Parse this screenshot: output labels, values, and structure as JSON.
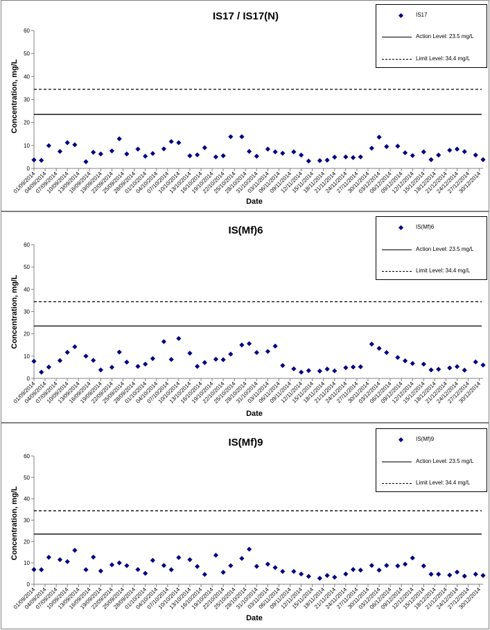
{
  "chart_data": [
    {
      "type": "scatter",
      "title": "IS17 / IS17(N)",
      "xlabel": "Date",
      "ylabel": "Concentration, mg/L",
      "ylim": [
        0,
        60
      ],
      "yticks": [
        "0",
        "10",
        "20",
        "30",
        "40",
        "50",
        "60"
      ],
      "xticks": [
        "01/09/2014",
        "04/09/2014",
        "07/09/2014",
        "10/09/2014",
        "13/09/2014",
        "16/09/2014",
        "19/09/2014",
        "22/09/2014",
        "25/09/2014",
        "28/09/2014",
        "01/10/2014",
        "04/10/2014",
        "07/10/2014",
        "10/10/2014",
        "13/10/2014",
        "16/10/2014",
        "19/10/2014",
        "22/10/2014",
        "25/10/2014",
        "28/10/2014",
        "31/10/2014",
        "03/11/2014",
        "06/11/2014",
        "09/11/2014",
        "12/11/2014",
        "15/11/2014",
        "18/11/2014",
        "21/11/2014",
        "24/11/2014",
        "27/11/2014",
        "30/11/2014",
        "03/12/2014",
        "06/12/2014",
        "09/12/2014",
        "12/12/2014",
        "15/12/2014",
        "18/12/2014",
        "21/12/2014",
        "24/12/2014",
        "27/12/2014",
        "30/12/2014"
      ],
      "legend_position": "top-right",
      "legend": {
        "series": "IS17",
        "action": "Action Level: 23.5 mg/L",
        "limit": "Limit Level: 34.4 mg/L"
      },
      "action_level": 23.5,
      "limit_level": 34.4,
      "points": [
        {
          "x": "01/09/2014",
          "y": 3.7
        },
        {
          "x": "03/09/2014",
          "y": 3.5
        },
        {
          "x": "05/09/2014",
          "y": 9.9
        },
        {
          "x": "08/09/2014",
          "y": 7.4
        },
        {
          "x": "10/09/2014",
          "y": 11.2
        },
        {
          "x": "12/09/2014",
          "y": 10.3
        },
        {
          "x": "15/09/2014",
          "y": 2.9
        },
        {
          "x": "17/09/2014",
          "y": 7.0
        },
        {
          "x": "19/09/2014",
          "y": 6.3
        },
        {
          "x": "22/09/2014",
          "y": 7.6
        },
        {
          "x": "24/09/2014",
          "y": 12.9
        },
        {
          "x": "26/09/2014",
          "y": 6.3
        },
        {
          "x": "29/09/2014",
          "y": 8.4
        },
        {
          "x": "01/10/2014",
          "y": 5.3
        },
        {
          "x": "03/10/2014",
          "y": 6.5
        },
        {
          "x": "06/10/2014",
          "y": 8.5
        },
        {
          "x": "08/10/2014",
          "y": 11.7
        },
        {
          "x": "10/10/2014",
          "y": 11.2
        },
        {
          "x": "13/10/2014",
          "y": 5.5
        },
        {
          "x": "15/10/2014",
          "y": 5.9
        },
        {
          "x": "17/10/2014",
          "y": 9.0
        },
        {
          "x": "20/10/2014",
          "y": 5.0
        },
        {
          "x": "22/10/2014",
          "y": 5.5
        },
        {
          "x": "24/10/2014",
          "y": 13.8
        },
        {
          "x": "27/10/2014",
          "y": 13.8
        },
        {
          "x": "29/10/2014",
          "y": 7.4
        },
        {
          "x": "31/10/2014",
          "y": 5.3
        },
        {
          "x": "03/11/2014",
          "y": 8.4
        },
        {
          "x": "05/11/2014",
          "y": 7.2
        },
        {
          "x": "07/11/2014",
          "y": 6.6
        },
        {
          "x": "10/11/2014",
          "y": 7.2
        },
        {
          "x": "12/11/2014",
          "y": 5.8
        },
        {
          "x": "14/11/2014",
          "y": 3.2
        },
        {
          "x": "17/11/2014",
          "y": 3.4
        },
        {
          "x": "19/11/2014",
          "y": 3.6
        },
        {
          "x": "21/11/2014",
          "y": 4.9
        },
        {
          "x": "24/11/2014",
          "y": 5.0
        },
        {
          "x": "26/11/2014",
          "y": 4.7
        },
        {
          "x": "28/11/2014",
          "y": 5.0
        },
        {
          "x": "01/12/2014",
          "y": 8.8
        },
        {
          "x": "03/12/2014",
          "y": 13.6
        },
        {
          "x": "05/12/2014",
          "y": 9.5
        },
        {
          "x": "08/12/2014",
          "y": 9.7
        },
        {
          "x": "10/12/2014",
          "y": 6.8
        },
        {
          "x": "12/12/2014",
          "y": 5.6
        },
        {
          "x": "15/12/2014",
          "y": 7.2
        },
        {
          "x": "17/12/2014",
          "y": 3.8
        },
        {
          "x": "19/12/2014",
          "y": 5.8
        },
        {
          "x": "22/12/2014",
          "y": 7.9
        },
        {
          "x": "24/12/2014",
          "y": 8.4
        },
        {
          "x": "26/12/2014",
          "y": 7.3
        },
        {
          "x": "29/12/2014",
          "y": 5.8
        },
        {
          "x": "31/12/2014",
          "y": 3.8
        }
      ]
    },
    {
      "type": "scatter",
      "title": "IS(Mf)6",
      "xlabel": "Date",
      "ylabel": "Concentration, mg/L",
      "ylim": [
        0,
        60
      ],
      "yticks": [
        "0",
        "10",
        "20",
        "30",
        "40",
        "50",
        "60"
      ],
      "xticks": [
        "01/09/2014",
        "04/09/2014",
        "07/09/2014",
        "10/09/2014",
        "13/09/2014",
        "16/09/2014",
        "19/09/2014",
        "22/09/2014",
        "25/09/2014",
        "28/09/2014",
        "01/10/2014",
        "04/10/2014",
        "07/10/2014",
        "10/10/2014",
        "13/10/2014",
        "16/10/2014",
        "19/10/2014",
        "22/10/2014",
        "25/10/2014",
        "28/10/2014",
        "31/10/2014",
        "03/11/2014",
        "06/11/2014",
        "09/11/2014",
        "12/11/2014",
        "15/11/2014",
        "18/11/2014",
        "21/11/2014",
        "24/11/2014",
        "27/11/2014",
        "30/11/2014",
        "03/12/2014",
        "06/12/2014",
        "09/12/2014",
        "12/12/2014",
        "15/12/2014",
        "18/12/2014",
        "21/12/2014",
        "24/12/2014",
        "27/12/2014",
        "30/12/2014"
      ],
      "legend_position": "top-right",
      "legend": {
        "series": "IS(Mf)6",
        "action": "Action Level: 23.5 mg/L",
        "limit": "Limit Level: 34.4 mg/L"
      },
      "action_level": 23.5,
      "limit_level": 34.4,
      "points": [
        {
          "x": "01/09/2014",
          "y": 7.7
        },
        {
          "x": "03/09/2014",
          "y": 2.8
        },
        {
          "x": "05/09/2014",
          "y": 5.1
        },
        {
          "x": "08/09/2014",
          "y": 8.0
        },
        {
          "x": "10/09/2014",
          "y": 11.7
        },
        {
          "x": "12/09/2014",
          "y": 14.2
        },
        {
          "x": "15/09/2014",
          "y": 10.0
        },
        {
          "x": "17/09/2014",
          "y": 8.1
        },
        {
          "x": "19/09/2014",
          "y": 3.8
        },
        {
          "x": "22/09/2014",
          "y": 5.0
        },
        {
          "x": "24/09/2014",
          "y": 11.8
        },
        {
          "x": "26/09/2014",
          "y": 7.3
        },
        {
          "x": "29/09/2014",
          "y": 5.4
        },
        {
          "x": "01/10/2014",
          "y": 6.4
        },
        {
          "x": "03/10/2014",
          "y": 8.9
        },
        {
          "x": "06/10/2014",
          "y": 16.5
        },
        {
          "x": "08/10/2014",
          "y": 8.5
        },
        {
          "x": "10/10/2014",
          "y": 17.9
        },
        {
          "x": "13/10/2014",
          "y": 11.3
        },
        {
          "x": "15/10/2014",
          "y": 5.4
        },
        {
          "x": "17/10/2014",
          "y": 7.1
        },
        {
          "x": "20/10/2014",
          "y": 8.6
        },
        {
          "x": "22/10/2014",
          "y": 8.4
        },
        {
          "x": "24/10/2014",
          "y": 10.9
        },
        {
          "x": "27/10/2014",
          "y": 15.0
        },
        {
          "x": "29/10/2014",
          "y": 15.6
        },
        {
          "x": "31/10/2014",
          "y": 11.6
        },
        {
          "x": "03/11/2014",
          "y": 12.1
        },
        {
          "x": "05/11/2014",
          "y": 14.5
        },
        {
          "x": "07/11/2014",
          "y": 5.8
        },
        {
          "x": "10/11/2014",
          "y": 4.3
        },
        {
          "x": "12/11/2014",
          "y": 2.8
        },
        {
          "x": "14/11/2014",
          "y": 3.5
        },
        {
          "x": "17/11/2014",
          "y": 3.3
        },
        {
          "x": "19/11/2014",
          "y": 4.2
        },
        {
          "x": "21/11/2014",
          "y": 3.4
        },
        {
          "x": "24/11/2014",
          "y": 4.8
        },
        {
          "x": "26/11/2014",
          "y": 5.1
        },
        {
          "x": "28/11/2014",
          "y": 5.2
        },
        {
          "x": "01/12/2014",
          "y": 15.4
        },
        {
          "x": "03/12/2014",
          "y": 13.5
        },
        {
          "x": "05/12/2014",
          "y": 11.6
        },
        {
          "x": "08/12/2014",
          "y": 9.4
        },
        {
          "x": "10/12/2014",
          "y": 7.9
        },
        {
          "x": "12/12/2014",
          "y": 6.7
        },
        {
          "x": "15/12/2014",
          "y": 6.4
        },
        {
          "x": "17/12/2014",
          "y": 3.8
        },
        {
          "x": "19/12/2014",
          "y": 4.1
        },
        {
          "x": "22/12/2014",
          "y": 4.7
        },
        {
          "x": "24/12/2014",
          "y": 5.3
        },
        {
          "x": "26/12/2014",
          "y": 3.7
        },
        {
          "x": "29/12/2014",
          "y": 7.4
        },
        {
          "x": "31/12/2014",
          "y": 6.0
        }
      ]
    },
    {
      "type": "scatter",
      "title": "IS(Mf)9",
      "xlabel": "Date",
      "ylabel": "Concentration, mg/L",
      "ylim": [
        0,
        60
      ],
      "yticks": [
        "0",
        "10",
        "20",
        "30",
        "40",
        "50",
        "60"
      ],
      "xticks": [
        "01/09/2014",
        "04/09/2014",
        "07/09/2014",
        "10/09/2014",
        "13/09/2014",
        "16/09/2014",
        "19/09/2014",
        "22/09/2014",
        "25/09/2014",
        "28/09/2014",
        "01/10/2014",
        "04/10/2014",
        "07/10/2014",
        "10/10/2014",
        "13/10/2014",
        "16/10/2014",
        "19/10/2014",
        "22/10/2014",
        "25/10/2014",
        "28/10/2014",
        "31/10/2014",
        "03/11/2014",
        "06/11/2014",
        "09/11/2014",
        "12/11/2014",
        "15/11/2014",
        "18/11/2014",
        "21/11/2014",
        "24/11/2014",
        "27/11/2014",
        "30/11/2014",
        "03/12/2014",
        "06/12/2014",
        "09/12/2014",
        "12/12/2014",
        "15/12/2014",
        "18/12/2014",
        "21/12/2014",
        "24/12/2014",
        "27/12/2014",
        "30/12/2014"
      ],
      "legend_position": "top-right",
      "legend": {
        "series": "IS(Mf)9",
        "action": "Action Level: 23.5 mg/L",
        "limit": "Limit Level: 34.4 mg/L"
      },
      "action_level": 23.5,
      "limit_level": 34.4,
      "points": [
        {
          "x": "01/09/2014",
          "y": 6.9
        },
        {
          "x": "03/09/2014",
          "y": 6.8
        },
        {
          "x": "05/09/2014",
          "y": 12.6
        },
        {
          "x": "08/09/2014",
          "y": 11.5
        },
        {
          "x": "10/09/2014",
          "y": 10.6
        },
        {
          "x": "12/09/2014",
          "y": 15.9
        },
        {
          "x": "15/09/2014",
          "y": 6.8
        },
        {
          "x": "17/09/2014",
          "y": 12.7
        },
        {
          "x": "19/09/2014",
          "y": 6.2
        },
        {
          "x": "22/09/2014",
          "y": 9.1
        },
        {
          "x": "24/09/2014",
          "y": 10.0
        },
        {
          "x": "26/09/2014",
          "y": 8.7
        },
        {
          "x": "29/09/2014",
          "y": 6.9
        },
        {
          "x": "01/10/2014",
          "y": 5.1
        },
        {
          "x": "03/10/2014",
          "y": 11.2
        },
        {
          "x": "06/10/2014",
          "y": 8.8
        },
        {
          "x": "08/10/2014",
          "y": 6.8
        },
        {
          "x": "10/10/2014",
          "y": 12.5
        },
        {
          "x": "13/10/2014",
          "y": 11.5
        },
        {
          "x": "15/10/2014",
          "y": 8.3
        },
        {
          "x": "17/10/2014",
          "y": 4.6
        },
        {
          "x": "20/10/2014",
          "y": 13.6
        },
        {
          "x": "22/10/2014",
          "y": 5.6
        },
        {
          "x": "24/10/2014",
          "y": 8.7
        },
        {
          "x": "27/10/2014",
          "y": 12.1
        },
        {
          "x": "29/10/2014",
          "y": 16.4
        },
        {
          "x": "31/10/2014",
          "y": 8.4
        },
        {
          "x": "03/11/2014",
          "y": 9.4
        },
        {
          "x": "05/11/2014",
          "y": 7.8
        },
        {
          "x": "07/11/2014",
          "y": 6.0
        },
        {
          "x": "10/11/2014",
          "y": 6.0
        },
        {
          "x": "12/11/2014",
          "y": 4.8
        },
        {
          "x": "14/11/2014",
          "y": 3.7
        },
        {
          "x": "17/11/2014",
          "y": 2.8
        },
        {
          "x": "19/11/2014",
          "y": 4.1
        },
        {
          "x": "21/11/2014",
          "y": 3.3
        },
        {
          "x": "24/11/2014",
          "y": 4.8
        },
        {
          "x": "26/11/2014",
          "y": 6.9
        },
        {
          "x": "28/11/2014",
          "y": 6.6
        },
        {
          "x": "01/12/2014",
          "y": 8.8
        },
        {
          "x": "03/12/2014",
          "y": 6.6
        },
        {
          "x": "05/12/2014",
          "y": 8.8
        },
        {
          "x": "08/12/2014",
          "y": 8.6
        },
        {
          "x": "10/12/2014",
          "y": 9.4
        },
        {
          "x": "12/12/2014",
          "y": 12.3
        },
        {
          "x": "15/12/2014",
          "y": 8.6
        },
        {
          "x": "17/12/2014",
          "y": 4.7
        },
        {
          "x": "19/12/2014",
          "y": 4.7
        },
        {
          "x": "22/12/2014",
          "y": 4.3
        },
        {
          "x": "24/12/2014",
          "y": 5.7
        },
        {
          "x": "26/12/2014",
          "y": 3.8
        },
        {
          "x": "29/12/2014",
          "y": 4.7
        },
        {
          "x": "31/12/2014",
          "y": 4.1
        }
      ]
    }
  ],
  "colors": {
    "marker": "#000080",
    "line": "#000000",
    "background": "#ffffff",
    "border": "#808080"
  }
}
